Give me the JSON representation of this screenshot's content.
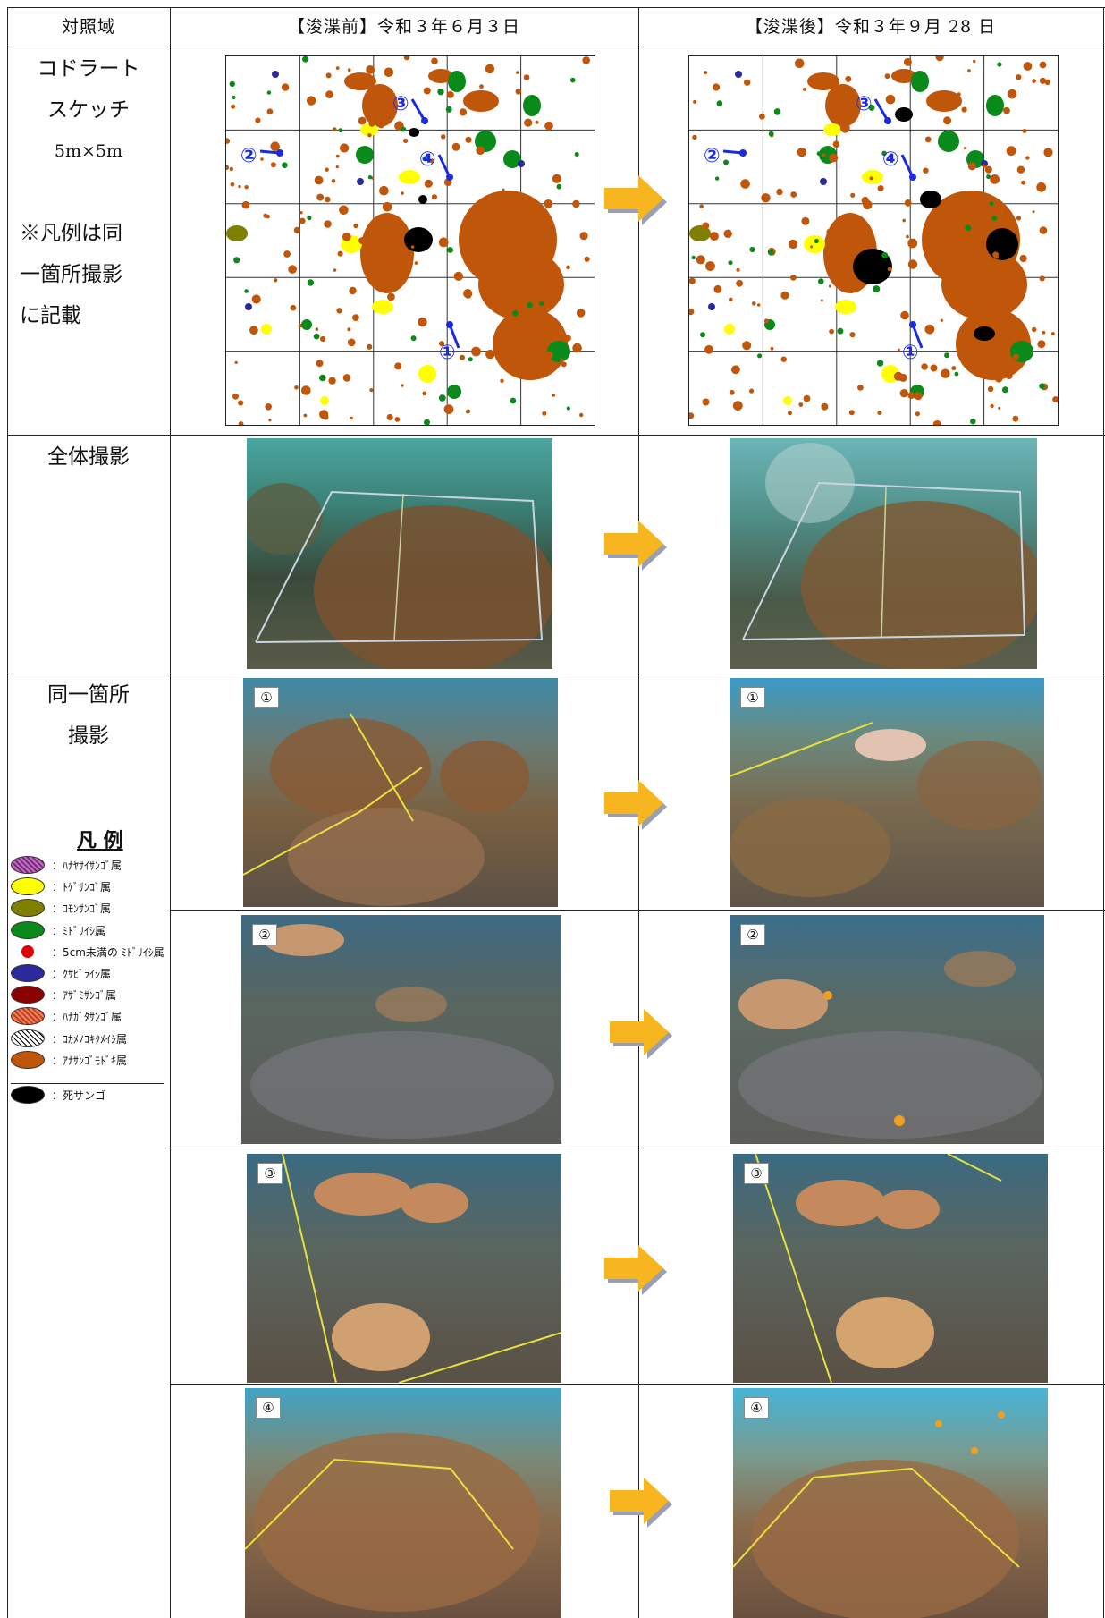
{
  "header": {
    "col1": "対照域",
    "col2": "【浚渫前】令和３年６月３日",
    "col3": "【浚渫後】令和３年９月 28 日"
  },
  "rows": {
    "sketch": {
      "label_line1": "コドラート",
      "label_line2": "スケッチ",
      "label_line3": "5m×5m",
      "note_line1": "※凡例は同",
      "note_line2": "一箇所撮影",
      "note_line3": "に記載"
    },
    "overall": {
      "label": "全体撮影"
    },
    "same_spot": {
      "label_line1": "同一箇所",
      "label_line2": "撮影",
      "photo_numbers": [
        "①",
        "②",
        "③",
        "④"
      ]
    }
  },
  "sketch_markers": [
    "①",
    "②",
    "③",
    "④"
  ],
  "legend": {
    "title": "凡 例",
    "items": [
      {
        "label": "：ﾊﾅﾔｻｲｻﾝｺﾞ属",
        "color": "#b05aa8"
      },
      {
        "label": "：ﾄｹﾞｻﾝｺﾞ属",
        "color": "#ffff00"
      },
      {
        "label": "：ｺﾓﾝｻﾝｺﾞ属",
        "color": "#808000"
      },
      {
        "label": "：ﾐﾄﾞﾘｲｼ属",
        "color": "#0a8a1a"
      },
      {
        "label": "：5cm未満の ﾐﾄﾞﾘｲｼ属",
        "color": "#e00000"
      },
      {
        "label": "：ｸｻﾋﾞﾗｲｼ属",
        "color": "#2a2a9a"
      },
      {
        "label": "：ｱｻﾞﾐｻﾝｺﾞ属",
        "color": "#8b0000"
      },
      {
        "label": "：ﾊﾅｶﾞﾀｻﾝｺﾞ属",
        "color": "#e06040"
      },
      {
        "label": "：ｺｶﾒﾉｺｷｸﾒｲｼ属",
        "color": "#ffffff"
      },
      {
        "label": "：ｱﾅｻﾝｺﾞﾓﾄﾞｷ属",
        "color": "#c0560a"
      },
      {
        "label": "：死サンゴ",
        "color": "#000000"
      }
    ]
  },
  "colors": {
    "arrow": "#f7b520",
    "arrow_shadow": "#9aa0b0",
    "coral_brown": "#c0560a",
    "coral_green": "#0a8a1a",
    "coral_yellow": "#ffff00",
    "marker_blue": "#1a2ae0"
  }
}
